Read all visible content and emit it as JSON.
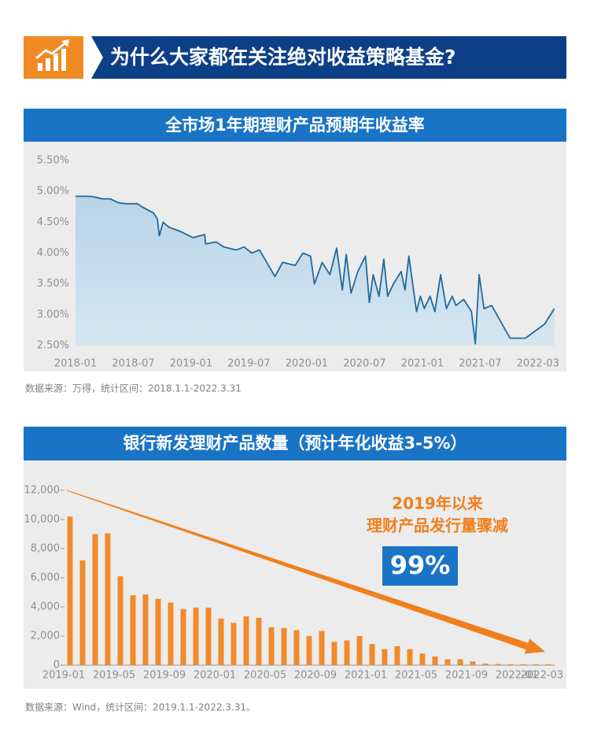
{
  "header": {
    "title": "为什么大家都在关注绝对收益策略基金?"
  },
  "chart_data": [
    {
      "type": "line",
      "title": "全市场1年期理财产品预期年收益率",
      "source": "数据来源：万得，统计区间：2018.1.1-2022.3.31",
      "x": [
        0,
        1.6,
        2.8,
        3.6,
        4.4,
        5.2,
        6.4,
        6.9,
        8.1,
        8.5,
        8.7,
        9.1,
        9.7,
        10.9,
        12.2,
        13.4,
        13.5,
        14.6,
        15.4,
        16.7,
        17.5,
        18.3,
        19.1,
        20.7,
        21.5,
        22.8,
        23.6,
        24.4,
        24.8,
        25.6,
        26.4,
        27.1,
        27.7,
        28.1,
        28.6,
        29.3,
        30.1,
        30.5,
        30.9,
        31.5,
        32.0,
        32.4,
        33.0,
        33.8,
        34.2,
        34.6,
        35.0,
        35.4,
        35.8,
        36.2,
        36.8,
        37.3,
        37.9,
        38.5,
        39.1,
        39.5,
        40.3,
        41.1,
        41.5,
        41.9,
        42.4,
        43.2,
        45.1,
        46.7,
        48.7,
        49.7
      ],
      "values": [
        4.92,
        4.92,
        4.88,
        4.88,
        4.82,
        4.8,
        4.8,
        4.75,
        4.65,
        4.55,
        4.28,
        4.5,
        4.42,
        4.35,
        4.25,
        4.3,
        4.15,
        4.18,
        4.1,
        4.05,
        4.1,
        4.0,
        4.05,
        3.62,
        3.85,
        3.8,
        4.0,
        3.95,
        3.5,
        3.85,
        3.65,
        4.08,
        3.4,
        3.98,
        3.35,
        3.7,
        3.95,
        3.2,
        3.65,
        3.3,
        3.9,
        3.3,
        3.5,
        3.7,
        3.4,
        3.95,
        3.5,
        3.05,
        3.3,
        3.1,
        3.3,
        3.05,
        3.65,
        3.1,
        3.3,
        3.15,
        3.25,
        3.05,
        2.53,
        3.65,
        3.1,
        3.15,
        2.62,
        2.62,
        2.85,
        3.1
      ],
      "color": "#1f6a9e",
      "xlim": [
        0,
        50.3
      ],
      "xticks": [
        {
          "value": 0,
          "label": "2018-01"
        },
        {
          "value": 6,
          "label": "2018-07"
        },
        {
          "value": 12,
          "label": "2019-01"
        },
        {
          "value": 18,
          "label": "2019-07"
        },
        {
          "value": 24,
          "label": "2020-01"
        },
        {
          "value": 30,
          "label": "2020-07"
        },
        {
          "value": 36,
          "label": "2021-01"
        },
        {
          "value": 42,
          "label": "2021-07"
        },
        {
          "value": 48,
          "label": "2022-03"
        }
      ],
      "ylim": [
        2.5,
        5.5
      ],
      "yticks": [
        {
          "value": 2.5,
          "label": "2.50%"
        },
        {
          "value": 3,
          "label": "3.00%"
        },
        {
          "value": 3.5,
          "label": "3.50%"
        },
        {
          "value": 4,
          "label": "4.00%"
        },
        {
          "value": 4.5,
          "label": "4.50%"
        },
        {
          "value": 5,
          "label": "5.00%"
        },
        {
          "value": 5.5,
          "label": "5.50%"
        }
      ]
    },
    {
      "type": "bar",
      "title": "银行新发理财产品数量（预计年化收益3-5%）",
      "source": "数据来源：Wind，统计区间：2019.1.1-2022.3.31。",
      "categories": [
        "2019-01",
        null,
        null,
        null,
        "2019-05",
        null,
        null,
        null,
        "2019-09",
        null,
        null,
        null,
        "2020-01",
        null,
        null,
        null,
        "2020-05",
        null,
        null,
        null,
        "2020-09",
        null,
        null,
        null,
        "2021-01",
        null,
        null,
        null,
        "2021-05",
        null,
        null,
        null,
        "2021-09",
        null,
        null,
        null,
        "2022-01",
        null,
        "2022-03"
      ],
      "values": [
        10200,
        7200,
        9000,
        9050,
        6100,
        4800,
        4850,
        4550,
        4300,
        3850,
        3950,
        3950,
        3200,
        2900,
        3350,
        3250,
        2600,
        2550,
        2400,
        2000,
        2350,
        1600,
        1700,
        2000,
        1450,
        1100,
        1300,
        1100,
        800,
        600,
        400,
        400,
        250,
        100,
        80,
        60,
        60,
        60,
        60
      ],
      "color": "#f28a2b",
      "ylim": [
        0,
        12000
      ],
      "yticks": [
        0,
        {
          "value": 2000,
          "label": "2,000"
        },
        {
          "value": 4000,
          "label": "4,000"
        },
        {
          "value": 6000,
          "label": "6,000"
        },
        {
          "value": 8000,
          "label": "8,000"
        },
        {
          "value": 10000,
          "label": "10,000"
        },
        {
          "value": 12000,
          "label": "12,000"
        }
      ],
      "annotations": [
        "2019年以来",
        "理财产品发行量骤减",
        "99%"
      ]
    }
  ]
}
